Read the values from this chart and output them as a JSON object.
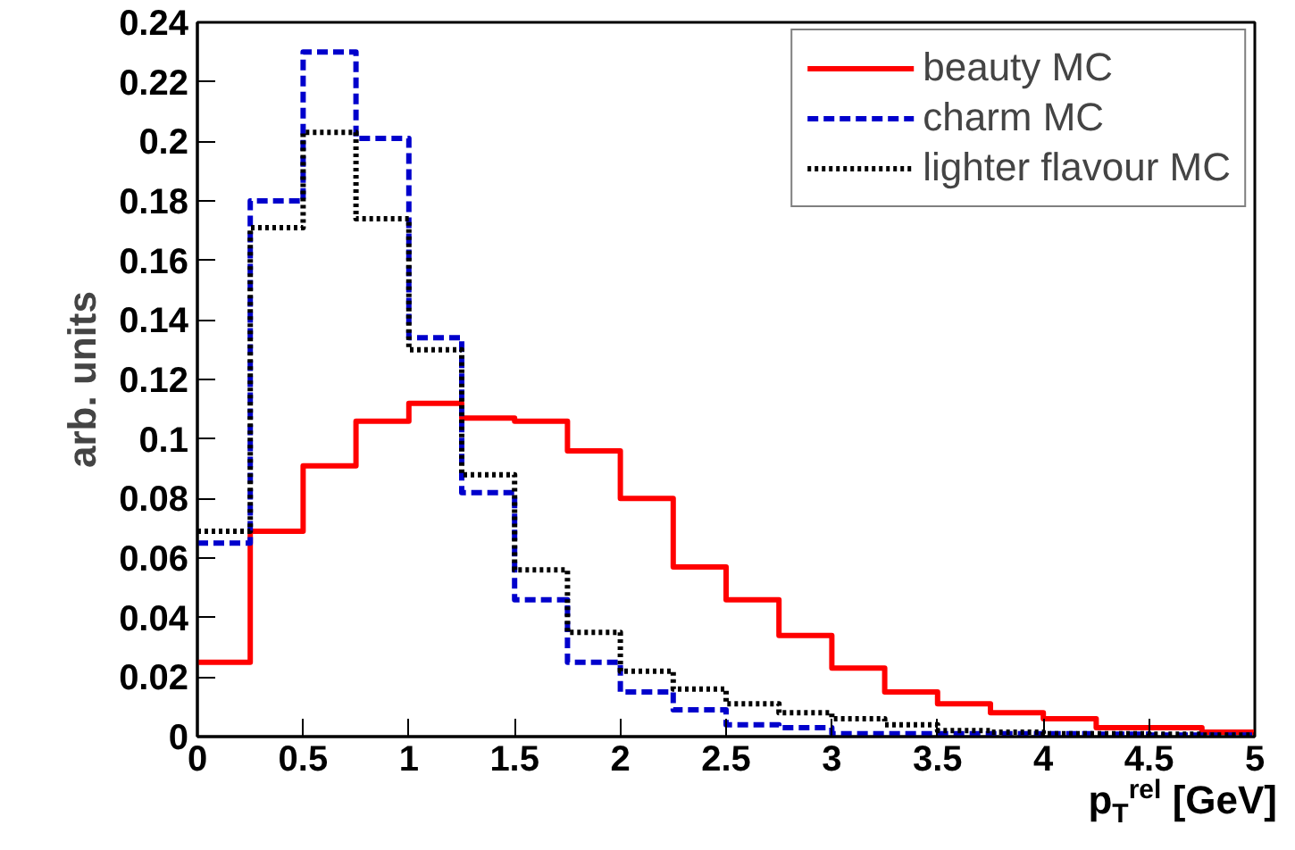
{
  "chart_data": {
    "type": "histogram",
    "xlabel": "p$_{T}$$^{rel}$ [GeV]",
    "ylabel": "arb. units",
    "bins": [
      0,
      0.25,
      0.5,
      0.75,
      1,
      1.25,
      1.5,
      1.75,
      2,
      2.25,
      2.5,
      2.75,
      3,
      3.25,
      3.5,
      3.75,
      4,
      4.25,
      4.5,
      4.75,
      5
    ],
    "series": [
      {
        "name": "beauty MC",
        "color": "#ff0000",
        "line_style": "solid",
        "values": [
          0.025,
          0.069,
          0.091,
          0.106,
          0.112,
          0.107,
          0.106,
          0.096,
          0.08,
          0.057,
          0.046,
          0.034,
          0.023,
          0.015,
          0.011,
          0.008,
          0.006,
          0.003,
          0.003,
          0.0015
        ]
      },
      {
        "name": "charm MC",
        "color": "#0000cc",
        "line_style": "dashed",
        "values": [
          0.065,
          0.18,
          0.23,
          0.201,
          0.134,
          0.082,
          0.046,
          0.025,
          0.015,
          0.009,
          0.004,
          0.003,
          0.001,
          0.001,
          0.001,
          0.001,
          0.001,
          0.0008,
          0.0005,
          0.0005
        ]
      },
      {
        "name": "lighter flavour MC",
        "color": "#000000",
        "line_style": "dotted",
        "values": [
          0.069,
          0.171,
          0.203,
          0.174,
          0.13,
          0.088,
          0.056,
          0.035,
          0.022,
          0.016,
          0.011,
          0.008,
          0.006,
          0.004,
          0.002,
          0.0015,
          0.001,
          0.001,
          0.0008,
          0.0005
        ]
      }
    ],
    "xlim": [
      0,
      5
    ],
    "ylim": [
      0,
      0.24
    ],
    "xticks": [
      0,
      0.5,
      1,
      1.5,
      2,
      2.5,
      3,
      3.5,
      4,
      4.5,
      5
    ],
    "yticks": [
      0,
      0.02,
      0.04,
      0.06,
      0.08,
      0.1,
      0.12,
      0.14,
      0.16,
      0.18,
      0.2,
      0.22,
      0.24
    ],
    "grid": false,
    "legend": "top right"
  }
}
